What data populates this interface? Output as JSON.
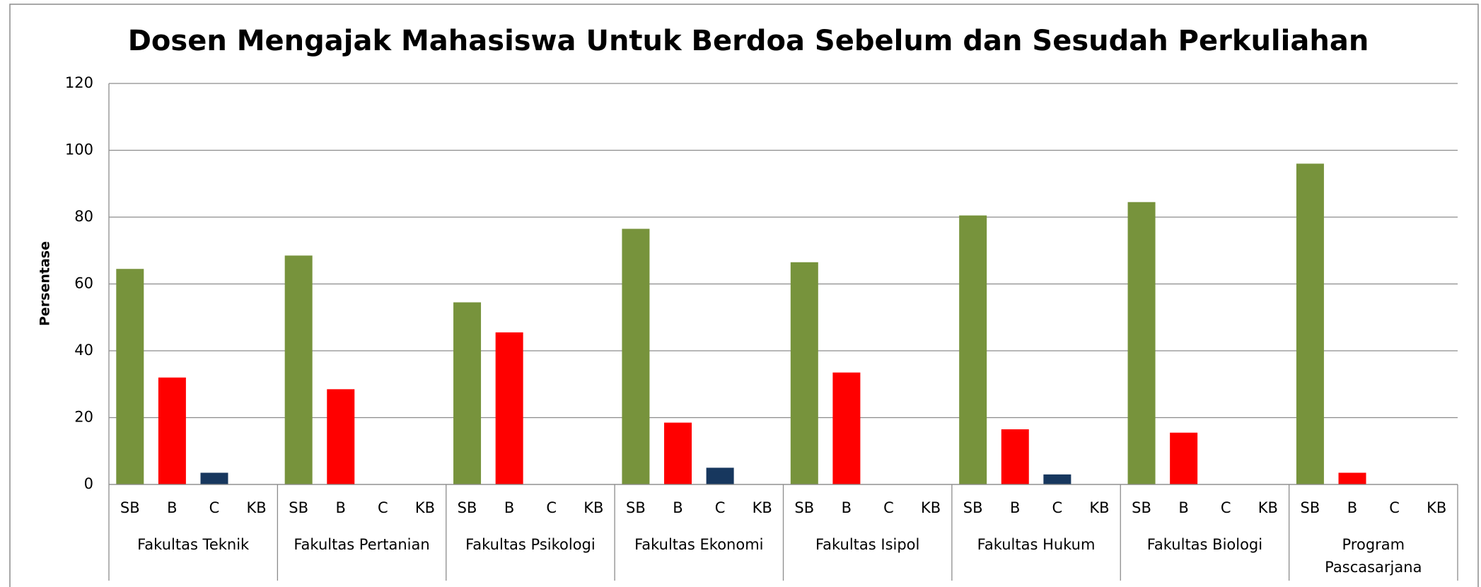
{
  "chart_data": {
    "type": "bar",
    "title": "Dosen Mengajak Mahasiswa Untuk Berdoa Sebelum dan Sesudah Perkuliahan",
    "ylabel": "Persentase",
    "subcategories": [
      "SB",
      "B",
      "C",
      "KB"
    ],
    "colors": [
      "#77933c",
      "#ff0000",
      "#17375e",
      "#7f7f7f"
    ],
    "groups": [
      {
        "name": "Fakultas Teknik",
        "values": [
          64.5,
          32,
          3.5,
          0
        ]
      },
      {
        "name": "Fakultas Pertanian",
        "values": [
          68.5,
          28.5,
          0,
          0
        ]
      },
      {
        "name": "Fakultas Psikologi",
        "values": [
          54.5,
          45.5,
          0,
          0
        ]
      },
      {
        "name": "Fakultas Ekonomi",
        "values": [
          76.5,
          18.5,
          5,
          0
        ]
      },
      {
        "name": "Fakultas Isipol",
        "values": [
          66.5,
          33.5,
          0,
          0
        ]
      },
      {
        "name": "Fakultas Hukum",
        "values": [
          80.5,
          16.5,
          3,
          0
        ]
      },
      {
        "name": "Fakultas Biologi",
        "values": [
          84.5,
          15.5,
          0,
          0
        ]
      },
      {
        "name": "Program Pascasarjana",
        "values": [
          96,
          3.5,
          0,
          0
        ]
      }
    ],
    "ylim": [
      0,
      120
    ],
    "yticks": [
      0,
      20,
      40,
      60,
      80,
      100,
      120
    ],
    "grid": true
  }
}
